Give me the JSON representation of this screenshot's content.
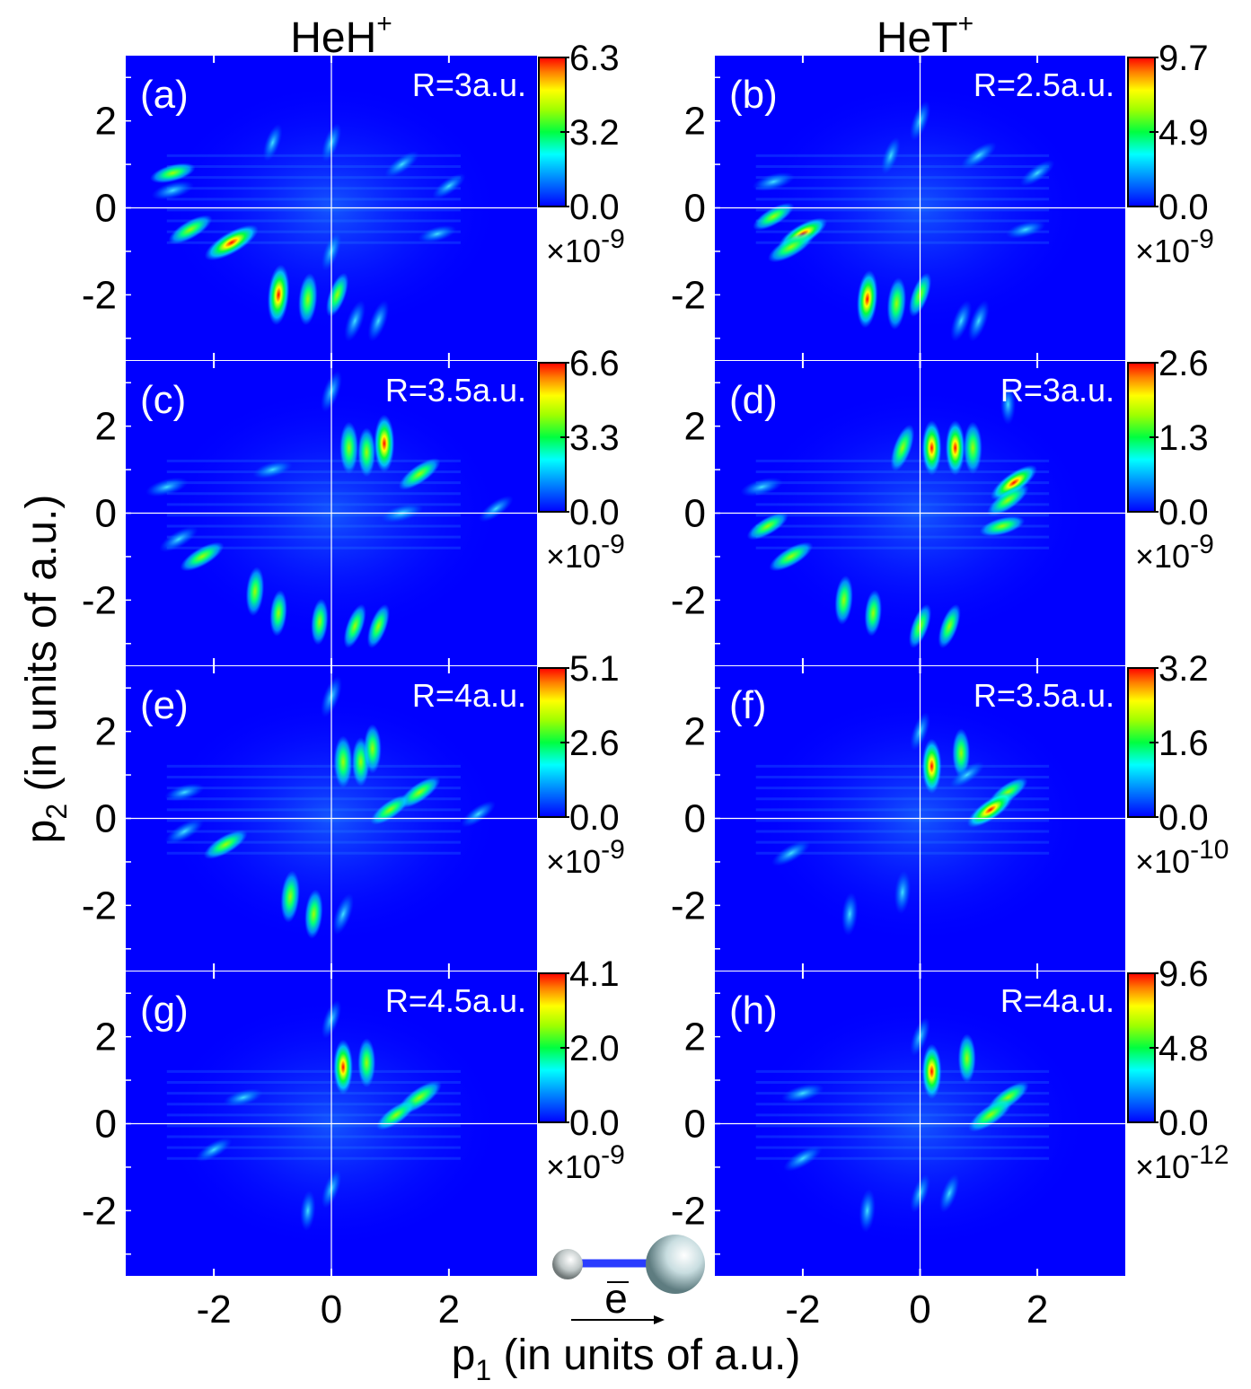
{
  "figure": {
    "column_titles": [
      {
        "base": "HeH",
        "sup": "+"
      },
      {
        "base": "HeT",
        "sup": "+"
      }
    ],
    "xlabel": {
      "pre": "p",
      "sub": "1",
      "post": " (in units of a.u.)"
    },
    "ylabel": {
      "pre": "p",
      "sub": "2",
      "post": " (in units of a.u.)"
    },
    "inset_vector_label": "e",
    "colors": {
      "background": "#0000ff",
      "axis_line": "#ffffff",
      "molecule_bond": "#2a3cff"
    }
  },
  "chart_data": {
    "type": "heatmap",
    "xlim": [
      -3.5,
      3.5
    ],
    "ylim": [
      -3.5,
      3.5
    ],
    "xticks": [
      -2,
      0,
      2
    ],
    "yticks": [
      2,
      0,
      -2
    ],
    "xtick_labels": [
      "-2",
      "0",
      "2"
    ],
    "ytick_labels": [
      "2",
      "0",
      "-2"
    ],
    "colormap": [
      "#0000ff",
      "#00a0ff",
      "#00ffff",
      "#00ff40",
      "#a0ff00",
      "#ffff00",
      "#ff8000",
      "#ff0000"
    ],
    "panels": [
      {
        "id": "a",
        "label": "(a)",
        "R": "R=3a.u.",
        "cb_max": "6.3",
        "cb_mid": "3.2",
        "cb_min": "0.0",
        "cb_exp": "-9",
        "blobs": [
          [
            -1.7,
            -0.8,
            1.0
          ],
          [
            -2.4,
            -0.5,
            0.6
          ],
          [
            -2.7,
            0.8,
            0.5
          ],
          [
            -2.7,
            0.4,
            0.4
          ],
          [
            -0.9,
            -2.0,
            1.0
          ],
          [
            -0.4,
            -2.1,
            0.7
          ],
          [
            0.1,
            -2.0,
            0.5
          ],
          [
            0.4,
            -2.6,
            0.4
          ],
          [
            0.8,
            -2.6,
            0.4
          ],
          [
            0.0,
            1.5,
            0.3
          ],
          [
            1.2,
            1.0,
            0.3
          ],
          [
            2.0,
            0.5,
            0.25
          ],
          [
            -1.0,
            1.5,
            0.25
          ],
          [
            1.8,
            -0.6,
            0.25
          ],
          [
            0.0,
            -1.0,
            0.3
          ]
        ]
      },
      {
        "id": "b",
        "label": "(b)",
        "R": "R=2.5a.u.",
        "cb_max": "9.7",
        "cb_mid": "4.9",
        "cb_min": "0.0",
        "cb_exp": "-9",
        "blobs": [
          [
            -2.0,
            -0.6,
            0.8
          ],
          [
            -2.2,
            -0.9,
            0.7
          ],
          [
            -2.5,
            -0.2,
            0.5
          ],
          [
            -0.9,
            -2.1,
            0.9
          ],
          [
            -0.4,
            -2.2,
            0.7
          ],
          [
            0.0,
            -2.0,
            0.5
          ],
          [
            0.7,
            -2.6,
            0.4
          ],
          [
            1.0,
            -2.6,
            0.4
          ],
          [
            0.0,
            2.0,
            0.35
          ],
          [
            1.0,
            1.2,
            0.35
          ],
          [
            2.0,
            0.8,
            0.3
          ],
          [
            -2.5,
            0.6,
            0.4
          ],
          [
            1.8,
            -0.5,
            0.3
          ],
          [
            -0.5,
            1.2,
            0.25
          ]
        ]
      },
      {
        "id": "c",
        "label": "(c)",
        "R": "R=3.5a.u.",
        "cb_max": "6.6",
        "cb_mid": "3.3",
        "cb_min": "0.0",
        "cb_exp": "-9",
        "blobs": [
          [
            0.9,
            1.6,
            0.9
          ],
          [
            0.3,
            1.5,
            0.7
          ],
          [
            0.6,
            1.4,
            0.6
          ],
          [
            1.5,
            0.9,
            0.6
          ],
          [
            1.2,
            0.0,
            0.4
          ],
          [
            -2.2,
            -1.0,
            0.6
          ],
          [
            -2.6,
            -0.6,
            0.4
          ],
          [
            -1.3,
            -1.8,
            0.6
          ],
          [
            -0.9,
            -2.3,
            0.5
          ],
          [
            -0.2,
            -2.5,
            0.5
          ],
          [
            0.4,
            -2.6,
            0.5
          ],
          [
            0.8,
            -2.6,
            0.5
          ],
          [
            -2.8,
            0.6,
            0.4
          ],
          [
            0.0,
            2.8,
            0.4
          ],
          [
            2.8,
            0.1,
            0.3
          ],
          [
            -1.0,
            1.0,
            0.3
          ]
        ]
      },
      {
        "id": "d",
        "label": "(d)",
        "R": "R=3a.u.",
        "cb_max": "2.6",
        "cb_mid": "1.3",
        "cb_min": "0.0",
        "cb_exp": "-9",
        "blobs": [
          [
            0.2,
            1.5,
            0.8
          ],
          [
            0.6,
            1.5,
            0.8
          ],
          [
            0.9,
            1.5,
            0.7
          ],
          [
            -0.3,
            1.5,
            0.6
          ],
          [
            1.6,
            0.7,
            0.8
          ],
          [
            1.5,
            0.3,
            0.6
          ],
          [
            1.4,
            -0.3,
            0.5
          ],
          [
            -2.2,
            -1.0,
            0.6
          ],
          [
            -2.6,
            -0.3,
            0.5
          ],
          [
            -1.3,
            -2.0,
            0.6
          ],
          [
            -0.8,
            -2.3,
            0.5
          ],
          [
            0.0,
            -2.6,
            0.5
          ],
          [
            0.5,
            -2.6,
            0.5
          ],
          [
            -2.7,
            0.6,
            0.4
          ],
          [
            1.5,
            2.5,
            0.3
          ]
        ]
      },
      {
        "id": "e",
        "label": "(e)",
        "R": "R=4a.u.",
        "cb_max": "5.1",
        "cb_mid": "2.6",
        "cb_min": "0.0",
        "cb_exp": "-9",
        "blobs": [
          [
            0.2,
            1.3,
            0.7
          ],
          [
            0.5,
            1.3,
            0.6
          ],
          [
            0.7,
            1.6,
            0.6
          ],
          [
            1.5,
            0.6,
            0.6
          ],
          [
            1.0,
            0.2,
            0.5
          ],
          [
            -1.8,
            -0.6,
            0.6
          ],
          [
            -2.5,
            -0.3,
            0.4
          ],
          [
            -0.7,
            -1.8,
            0.7
          ],
          [
            -0.3,
            -2.2,
            0.6
          ],
          [
            0.2,
            -2.2,
            0.4
          ],
          [
            0.0,
            2.8,
            0.4
          ],
          [
            2.5,
            0.1,
            0.3
          ],
          [
            -2.5,
            0.6,
            0.3
          ]
        ]
      },
      {
        "id": "f",
        "label": "(f)",
        "R": "R=3.5a.u.",
        "cb_max": "3.2",
        "cb_mid": "1.6",
        "cb_min": "0.0",
        "cb_exp": "-10",
        "blobs": [
          [
            0.2,
            1.2,
            0.8
          ],
          [
            0.7,
            1.5,
            0.6
          ],
          [
            1.5,
            0.6,
            0.5
          ],
          [
            1.2,
            0.2,
            0.8
          ],
          [
            -2.2,
            -0.8,
            0.4
          ],
          [
            -1.2,
            -2.2,
            0.4
          ],
          [
            -0.3,
            -1.7,
            0.4
          ],
          [
            0.0,
            2.0,
            0.3
          ],
          [
            0.8,
            1.0,
            0.3
          ]
        ]
      },
      {
        "id": "g",
        "label": "(g)",
        "R": "R=4.5a.u.",
        "cb_max": "4.1",
        "cb_mid": "2.0",
        "cb_min": "0.0",
        "cb_exp": "-9",
        "blobs": [
          [
            0.2,
            1.3,
            0.8
          ],
          [
            0.6,
            1.4,
            0.6
          ],
          [
            1.5,
            0.6,
            0.7
          ],
          [
            1.1,
            0.2,
            0.5
          ],
          [
            -2.0,
            -0.6,
            0.3
          ],
          [
            -0.4,
            -2.0,
            0.3
          ],
          [
            0.0,
            -1.5,
            0.3
          ],
          [
            -1.5,
            0.6,
            0.3
          ],
          [
            0.0,
            2.4,
            0.3
          ]
        ]
      },
      {
        "id": "h",
        "label": "(h)",
        "R": "R=4a.u.",
        "cb_max": "9.6",
        "cb_mid": "4.8",
        "cb_min": "0.0",
        "cb_exp": "-12",
        "blobs": [
          [
            0.2,
            1.2,
            0.8
          ],
          [
            0.8,
            1.5,
            0.6
          ],
          [
            1.5,
            0.6,
            0.6
          ],
          [
            1.2,
            0.2,
            0.7
          ],
          [
            -2.0,
            0.7,
            0.4
          ],
          [
            -2.0,
            -0.8,
            0.4
          ],
          [
            -0.9,
            -2.0,
            0.4
          ],
          [
            0.0,
            -1.6,
            0.3
          ],
          [
            0.0,
            2.0,
            0.3
          ],
          [
            0.5,
            -1.6,
            0.3
          ]
        ]
      }
    ]
  }
}
